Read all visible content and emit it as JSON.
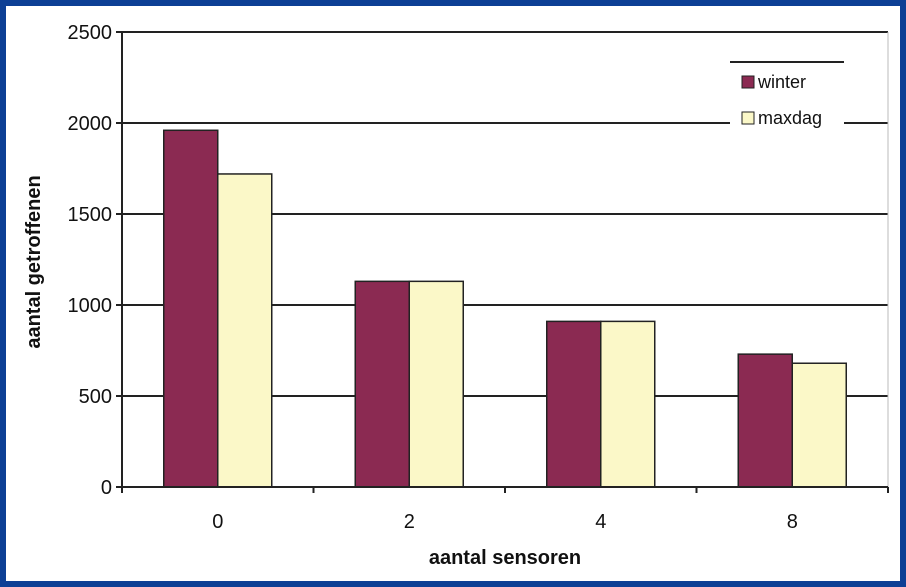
{
  "chart_data": {
    "type": "bar",
    "categories": [
      "0",
      "2",
      "4",
      "8"
    ],
    "series": [
      {
        "name": "winter",
        "values": [
          1960,
          1130,
          910,
          730
        ],
        "color": "#8b2a52"
      },
      {
        "name": "maxdag",
        "values": [
          1720,
          1130,
          910,
          680
        ],
        "color": "#fbf8c8"
      }
    ],
    "xlabel": "aantal sensoren",
    "ylabel": "aantal getroffenen",
    "ylim": [
      0,
      2500
    ],
    "yticks": [
      0,
      500,
      1000,
      1500,
      2000,
      2500
    ],
    "ytick_labels": [
      "0",
      "500",
      "1000",
      "1500",
      "2000",
      "2500"
    ],
    "grid": true,
    "legend_position": "top-right",
    "frame_color": "#0d3f95"
  }
}
